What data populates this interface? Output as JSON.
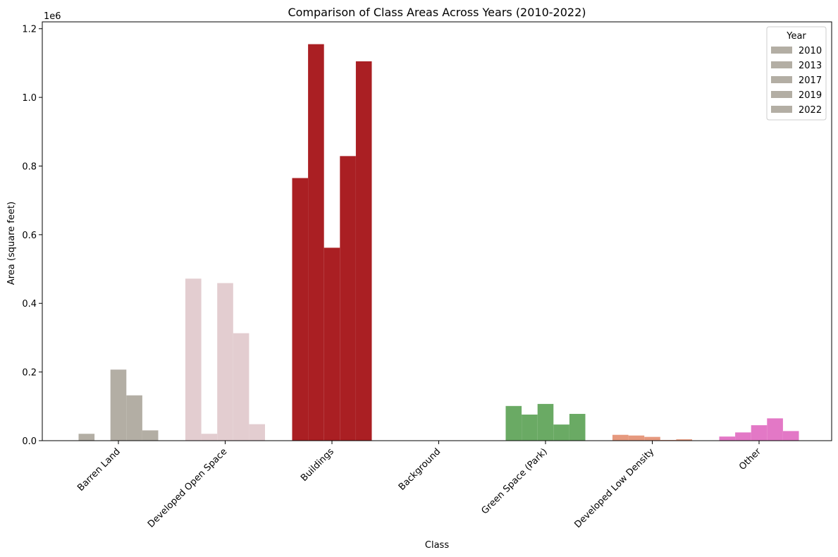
{
  "chart_data": {
    "type": "bar",
    "title": "Comparison of Class Areas Across Years (2010-2022)",
    "xlabel": "Class",
    "ylabel": "Area (square feet)",
    "y_scale_label": "1e6",
    "ylim": [
      0,
      1220000
    ],
    "y_ticks": [
      0,
      200000,
      400000,
      600000,
      800000,
      1000000,
      1200000
    ],
    "y_tick_labels": [
      "0.0",
      "0.2",
      "0.4",
      "0.6",
      "0.8",
      "1.0",
      "1.2"
    ],
    "categories": [
      "Barren Land",
      "Developed Open Space",
      "Buildings",
      "Background",
      "Green Space (Park)",
      "Developed Low Density",
      "Other"
    ],
    "category_colors": [
      "#b3aea4",
      "#e3cdd0",
      "#aa1f23",
      "#e9e3c8",
      "#6aaa64",
      "#e6997e",
      "#e378c6"
    ],
    "legend_title": "Year",
    "legend_color": "#b3aea4",
    "legend_position": "upper right",
    "grid": false,
    "series": [
      {
        "name": "2010",
        "values": [
          20000,
          472000,
          765000,
          0,
          101000,
          17000,
          12000
        ]
      },
      {
        "name": "2013",
        "values": [
          0,
          20000,
          1155000,
          0,
          76000,
          15000,
          24000
        ]
      },
      {
        "name": "2017",
        "values": [
          207000,
          459000,
          562000,
          0,
          107000,
          11000,
          45000
        ]
      },
      {
        "name": "2019",
        "values": [
          132000,
          313000,
          829000,
          0,
          47000,
          2000,
          65000
        ]
      },
      {
        "name": "2022",
        "values": [
          30000,
          48000,
          1105000,
          0,
          78000,
          4000,
          28000
        ]
      }
    ]
  }
}
